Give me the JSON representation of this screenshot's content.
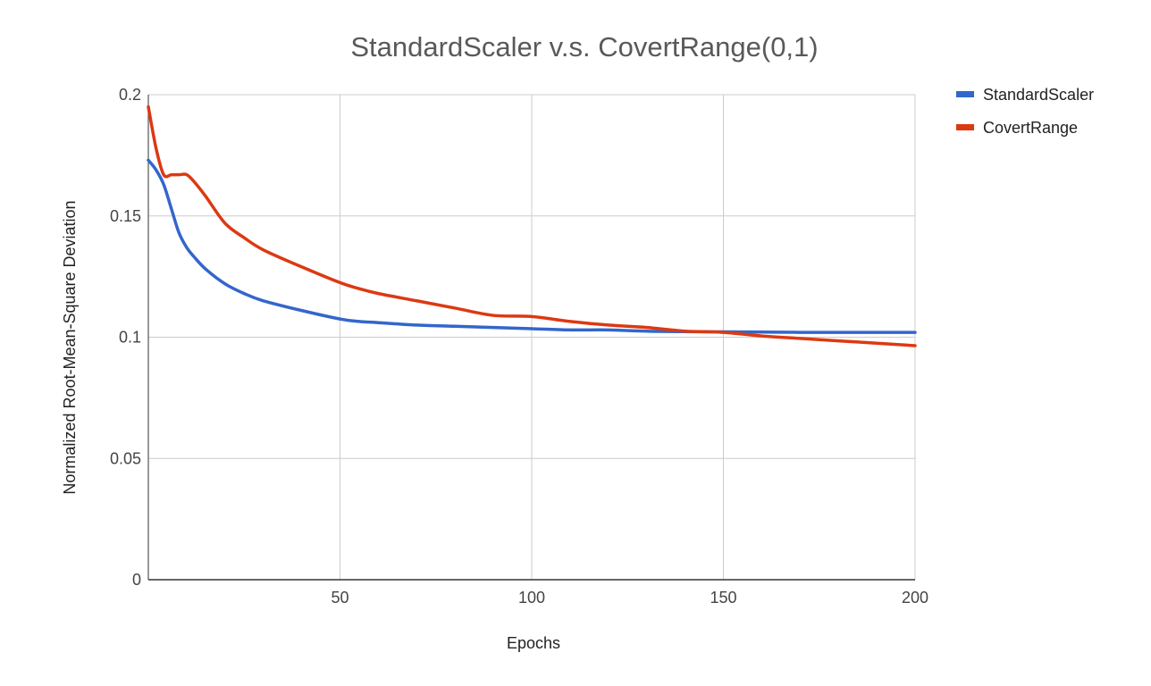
{
  "chart_data": {
    "type": "line",
    "title": "StandardScaler  v.s. CovertRange(0,1)",
    "xlabel": "Epochs",
    "ylabel": "Normalized Root-Mean-Square Deviation",
    "xlim": [
      0,
      200
    ],
    "ylim": [
      0,
      0.2
    ],
    "x_ticks": [
      50,
      100,
      150,
      200
    ],
    "x_tick_labels": [
      "50",
      "100",
      "150",
      "200"
    ],
    "y_ticks": [
      0,
      0.05,
      0.1,
      0.15,
      0.2
    ],
    "y_tick_labels": [
      "0",
      "0.05",
      "0.1",
      "0.15",
      "0.2"
    ],
    "grid": true,
    "legend_position": "top-right",
    "series": [
      {
        "name": "StandardScaler",
        "color": "#3366cc",
        "x": [
          0,
          2,
          4,
          6,
          8,
          10,
          12,
          15,
          20,
          25,
          30,
          40,
          50,
          55,
          60,
          70,
          80,
          90,
          100,
          110,
          120,
          130,
          140,
          150,
          160,
          170,
          180,
          190,
          200
        ],
        "y": [
          0.173,
          0.169,
          0.163,
          0.153,
          0.143,
          0.137,
          0.133,
          0.128,
          0.122,
          0.118,
          0.115,
          0.111,
          0.1075,
          0.1065,
          0.106,
          0.105,
          0.1045,
          0.104,
          0.1035,
          0.103,
          0.103,
          0.1025,
          0.1023,
          0.1022,
          0.1021,
          0.102,
          0.102,
          0.102,
          0.102
        ]
      },
      {
        "name": "CovertRange",
        "color": "#dc3912",
        "x": [
          0,
          2,
          4,
          6,
          8,
          10,
          12,
          15,
          20,
          25,
          30,
          40,
          50,
          55,
          60,
          70,
          80,
          90,
          100,
          110,
          120,
          130,
          140,
          150,
          160,
          170,
          180,
          190,
          200
        ],
        "y": [
          0.195,
          0.178,
          0.167,
          0.167,
          0.167,
          0.167,
          0.164,
          0.158,
          0.147,
          0.141,
          0.136,
          0.129,
          0.1225,
          0.12,
          0.118,
          0.115,
          0.112,
          0.109,
          0.1085,
          0.1065,
          0.105,
          0.104,
          0.1025,
          0.102,
          0.1005,
          0.0995,
          0.0985,
          0.0975,
          0.0965
        ]
      }
    ]
  }
}
